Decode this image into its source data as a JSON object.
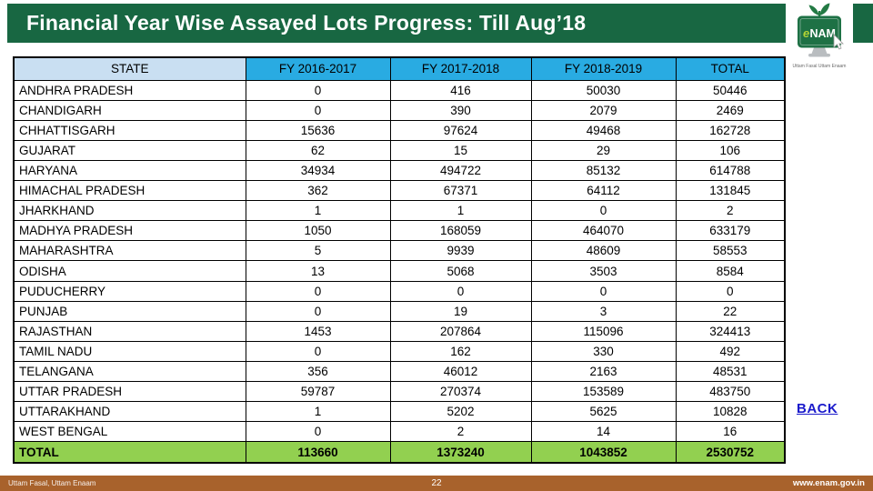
{
  "header": {
    "title": "Financial Year Wise Assayed Lots Progress: Till Aug’18"
  },
  "logo": {
    "text_e": "e",
    "text_nam": "NAM",
    "tagline": "Uttam Fasal Uttam Enaam"
  },
  "table": {
    "columns": [
      "STATE",
      "FY 2016-2017",
      "FY 2017-2018",
      "FY 2018-2019",
      "TOTAL"
    ],
    "rows": [
      [
        "ANDHRA PRADESH",
        "0",
        "416",
        "50030",
        "50446"
      ],
      [
        "CHANDIGARH",
        "0",
        "390",
        "2079",
        "2469"
      ],
      [
        "CHHATTISGARH",
        "15636",
        "97624",
        "49468",
        "162728"
      ],
      [
        "GUJARAT",
        "62",
        "15",
        "29",
        "106"
      ],
      [
        "HARYANA",
        "34934",
        "494722",
        "85132",
        "614788"
      ],
      [
        "HIMACHAL PRADESH",
        "362",
        "67371",
        "64112",
        "131845"
      ],
      [
        "JHARKHAND",
        "1",
        "1",
        "0",
        "2"
      ],
      [
        "MADHYA PRADESH",
        "1050",
        "168059",
        "464070",
        "633179"
      ],
      [
        "MAHARASHTRA",
        "5",
        "9939",
        "48609",
        "58553"
      ],
      [
        "ODISHA",
        "13",
        "5068",
        "3503",
        "8584"
      ],
      [
        "PUDUCHERRY",
        "0",
        "0",
        "0",
        "0"
      ],
      [
        "PUNJAB",
        "0",
        "19",
        "3",
        "22"
      ],
      [
        "RAJASTHAN",
        "1453",
        "207864",
        "115096",
        "324413"
      ],
      [
        "TAMIL NADU",
        "0",
        "162",
        "330",
        "492"
      ],
      [
        "TELANGANA",
        "356",
        "46012",
        "2163",
        "48531"
      ],
      [
        "UTTAR PRADESH",
        "59787",
        "270374",
        "153589",
        "483750"
      ],
      [
        "UTTARAKHAND",
        "1",
        "5202",
        "5625",
        "10828"
      ],
      [
        "WEST BENGAL",
        "0",
        "2",
        "14",
        "16"
      ]
    ],
    "total_row": [
      "TOTAL",
      "113660",
      "1373240",
      "1043852",
      "2530752"
    ]
  },
  "side": {
    "back_label": "BACK"
  },
  "footer": {
    "left": "Uttam Fasal, Uttam Enaam",
    "page": "22",
    "right": "www.enam.gov.in"
  },
  "colors": {
    "banner_green": "#186742",
    "header_blue": "#29ABE2",
    "header_light_blue": "#C9DFF2",
    "total_green": "#92D050",
    "footer_brown": "#A8622C",
    "back_link_blue": "#1A1ACB",
    "logo_green": "#1E7145"
  }
}
